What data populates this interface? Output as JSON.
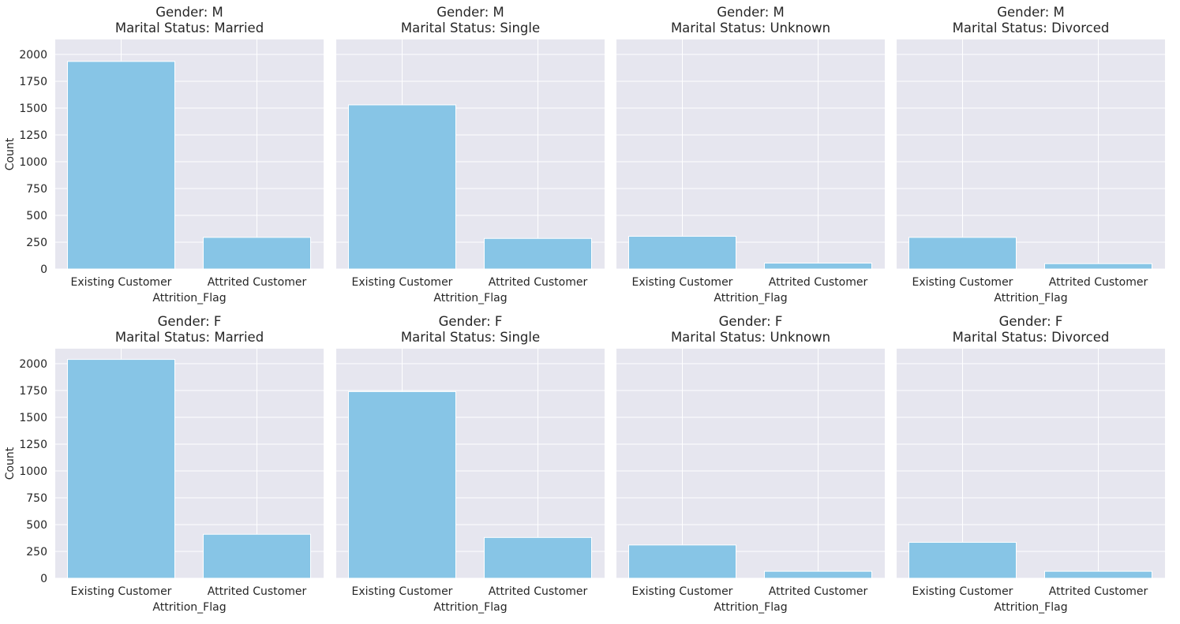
{
  "chart_data": {
    "type": "bar",
    "layout": "facet grid, 2 rows x 4 columns, shared y-axis",
    "style": {
      "bar_color": "#87c5e6",
      "panel_background": "#e6e6ef",
      "grid_color": "#ffffff",
      "text_color": "#262626"
    },
    "categories": [
      "Existing Customer",
      "Attrited Customer"
    ],
    "xlabel": "Attrition_Flag",
    "ylabel": "Count",
    "ylim": [
      0,
      2140
    ],
    "yticks": [
      0,
      250,
      500,
      750,
      1000,
      1250,
      1500,
      1750,
      2000
    ],
    "grid": true,
    "panels": [
      {
        "title_line1": "Gender: M",
        "title_line2": "Marital Status: Married",
        "values": [
          1935,
          295
        ]
      },
      {
        "title_line1": "Gender: M",
        "title_line2": "Marital Status: Single",
        "values": [
          1530,
          285
        ]
      },
      {
        "title_line1": "Gender: M",
        "title_line2": "Marital Status: Unknown",
        "values": [
          305,
          55
        ]
      },
      {
        "title_line1": "Gender: M",
        "title_line2": "Marital Status: Divorced",
        "values": [
          295,
          50
        ]
      },
      {
        "title_line1": "Gender: F",
        "title_line2": "Marital Status: Married",
        "values": [
          2040,
          410
        ]
      },
      {
        "title_line1": "Gender: F",
        "title_line2": "Marital Status: Single",
        "values": [
          1740,
          380
        ]
      },
      {
        "title_line1": "Gender: F",
        "title_line2": "Marital Status: Unknown",
        "values": [
          310,
          65
        ]
      },
      {
        "title_line1": "Gender: F",
        "title_line2": "Marital Status: Divorced",
        "values": [
          335,
          65
        ]
      }
    ]
  }
}
